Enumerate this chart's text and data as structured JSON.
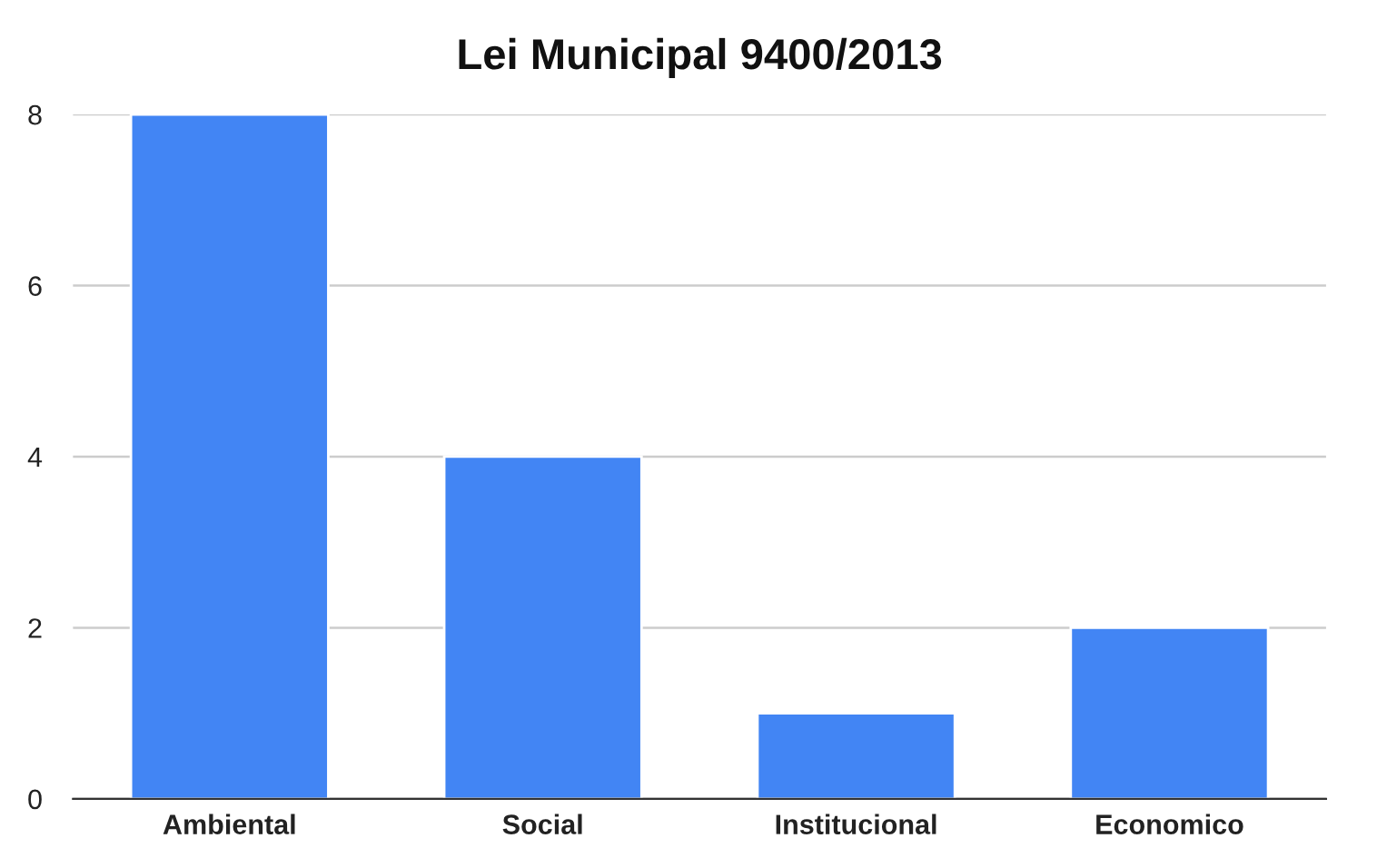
{
  "chart_data": {
    "type": "bar",
    "title": "Lei Municipal 9400/2013",
    "categories": [
      "Ambiental",
      "Social",
      "Institucional",
      "Economico"
    ],
    "values": [
      8,
      4,
      1,
      2
    ],
    "color": "#4285f4",
    "ylim": [
      0,
      8
    ],
    "yticks": [
      0,
      2,
      4,
      6,
      8
    ],
    "grid": "y",
    "legend": false
  }
}
